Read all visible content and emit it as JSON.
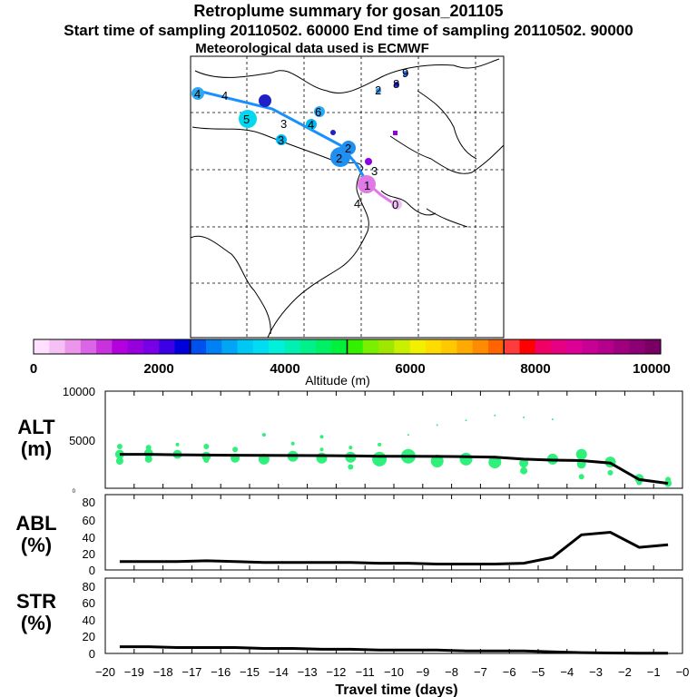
{
  "header": {
    "title": "Retroplume summary for gosan_201105",
    "sampling": "Start time of sampling 20110502. 60000     End time of sampling 20110502. 90000",
    "met": "Meteorological data used is ECMWF"
  },
  "colorbar": {
    "label": "Altitude (m)",
    "ticks": [
      "0",
      "2000",
      "4000",
      "6000",
      "8000",
      "10000"
    ],
    "colors": [
      "#ffe0ff",
      "#f5c0f5",
      "#eb96eb",
      "#dc64e6",
      "#c832dc",
      "#b400dc",
      "#9600dc",
      "#7800e6",
      "#3c00e6",
      "#0000dc",
      "#0050f0",
      "#0080f5",
      "#00a5f5",
      "#00c8f5",
      "#00dcf0",
      "#00f0dc",
      "#00f0b4",
      "#00f08c",
      "#00f064",
      "#00f03c",
      "#32f000",
      "#78f000",
      "#a0e600",
      "#c8f000",
      "#f0f000",
      "#ffdc00",
      "#ffc800",
      "#ffaa00",
      "#ff8c00",
      "#ff6400",
      "#ff3c3c",
      "#ff0000",
      "#f00064",
      "#e60082",
      "#dc0096",
      "#c80096",
      "#b4008c",
      "#a0007d",
      "#8c0073",
      "#780064"
    ]
  },
  "map": {
    "track_labels": [
      "4",
      "4",
      "5",
      "3",
      "4",
      "6",
      "3",
      "1",
      "2",
      "4",
      "0",
      "2",
      "3",
      "9",
      "8",
      "2"
    ]
  },
  "chart_data": [
    {
      "type": "line",
      "panel": "ALT",
      "ylabel": "ALT (m)",
      "ylabel_lines": [
        "ALT",
        "(m)"
      ],
      "ylim": [
        0,
        10000
      ],
      "yticks": [
        "10000",
        "5000",
        "0"
      ],
      "x": [
        -19.5,
        -18.5,
        -17.5,
        -16.5,
        -15.5,
        -14.5,
        -13.5,
        -12.5,
        -11.5,
        -10.5,
        -9.5,
        -8.5,
        -7.5,
        -6.5,
        -5.5,
        -4.5,
        -3.5,
        -2.5,
        -1.5,
        -0.5
      ],
      "values": [
        3500,
        3500,
        3450,
        3420,
        3400,
        3380,
        3370,
        3360,
        3340,
        3300,
        3300,
        3280,
        3250,
        3200,
        3000,
        2900,
        2850,
        2600,
        900,
        500
      ],
      "scatter": [
        {
          "x": -19.5,
          "y": 3500,
          "r": 5
        },
        {
          "x": -19.5,
          "y": 2800,
          "r": 4
        },
        {
          "x": -19.5,
          "y": 4300,
          "r": 3
        },
        {
          "x": -18.5,
          "y": 3600,
          "r": 5
        },
        {
          "x": -18.5,
          "y": 3000,
          "r": 4
        },
        {
          "x": -18.5,
          "y": 4200,
          "r": 3
        },
        {
          "x": -17.5,
          "y": 3500,
          "r": 5
        },
        {
          "x": -17.5,
          "y": 4500,
          "r": 2
        },
        {
          "x": -16.5,
          "y": 3300,
          "r": 5
        },
        {
          "x": -16.5,
          "y": 4300,
          "r": 3
        },
        {
          "x": -16.5,
          "y": 2900,
          "r": 3
        },
        {
          "x": -15.5,
          "y": 3100,
          "r": 5
        },
        {
          "x": -15.5,
          "y": 4000,
          "r": 3
        },
        {
          "x": -14.5,
          "y": 3000,
          "r": 6
        },
        {
          "x": -14.5,
          "y": 5500,
          "r": 2
        },
        {
          "x": -13.5,
          "y": 3300,
          "r": 6
        },
        {
          "x": -13.5,
          "y": 4600,
          "r": 2
        },
        {
          "x": -12.5,
          "y": 3100,
          "r": 6
        },
        {
          "x": -12.5,
          "y": 5300,
          "r": 2
        },
        {
          "x": -12.5,
          "y": 4000,
          "r": 2
        },
        {
          "x": -11.5,
          "y": 3200,
          "r": 6
        },
        {
          "x": -11.5,
          "y": 2200,
          "r": 3
        },
        {
          "x": -11.5,
          "y": 4200,
          "r": 2
        },
        {
          "x": -10.5,
          "y": 3000,
          "r": 8
        },
        {
          "x": -10.5,
          "y": 4500,
          "r": 2
        },
        {
          "x": -9.5,
          "y": 3300,
          "r": 8
        },
        {
          "x": -9.5,
          "y": 5500,
          "r": 1
        },
        {
          "x": -8.5,
          "y": 2800,
          "r": 7
        },
        {
          "x": -8.5,
          "y": 6500,
          "r": 1
        },
        {
          "x": -7.5,
          "y": 3000,
          "r": 7
        },
        {
          "x": -7.5,
          "y": 7000,
          "r": 1
        },
        {
          "x": -6.5,
          "y": 2700,
          "r": 7
        },
        {
          "x": -6.5,
          "y": 7500,
          "r": 1
        },
        {
          "x": -5.5,
          "y": 2600,
          "r": 5
        },
        {
          "x": -5.5,
          "y": 1800,
          "r": 4
        },
        {
          "x": -5.5,
          "y": 7300,
          "r": 1
        },
        {
          "x": -4.5,
          "y": 3000,
          "r": 6
        },
        {
          "x": -4.5,
          "y": 7100,
          "r": 1
        },
        {
          "x": -3.5,
          "y": 3500,
          "r": 6
        },
        {
          "x": -3.5,
          "y": 2500,
          "r": 5
        },
        {
          "x": -3.5,
          "y": 1200,
          "r": 3
        },
        {
          "x": -2.5,
          "y": 2700,
          "r": 6
        },
        {
          "x": -2.5,
          "y": 1600,
          "r": 3
        },
        {
          "x": -1.5,
          "y": 1000,
          "r": 5
        },
        {
          "x": -1.5,
          "y": 600,
          "r": 3
        },
        {
          "x": -0.5,
          "y": 500,
          "r": 4
        },
        {
          "x": -0.5,
          "y": 900,
          "r": 3
        }
      ]
    },
    {
      "type": "line",
      "panel": "ABL",
      "ylabel": "ABL (%)",
      "ylabel_lines": [
        "ABL",
        "(%)"
      ],
      "ylim": [
        0,
        90
      ],
      "yticks": [
        "80",
        "60",
        "40",
        "20",
        "0"
      ],
      "x": [
        -19.5,
        -18.5,
        -17.5,
        -16.5,
        -15.5,
        -14.5,
        -13.5,
        -12.5,
        -11.5,
        -10.5,
        -9.5,
        -8.5,
        -7.5,
        -6.5,
        -5.5,
        -4.5,
        -3.5,
        -2.5,
        -1.5,
        -0.5
      ],
      "values": [
        10,
        10,
        10,
        11,
        10,
        9,
        9,
        9,
        9,
        8,
        8,
        7,
        7,
        7,
        8,
        15,
        42,
        45,
        27,
        30
      ]
    },
    {
      "type": "line",
      "panel": "STR",
      "ylabel": "STR (%)",
      "ylabel_lines": [
        "STR",
        "(%)"
      ],
      "ylim": [
        0,
        90
      ],
      "yticks": [
        "80",
        "60",
        "40",
        "20",
        "0"
      ],
      "x": [
        -19.5,
        -18.5,
        -17.5,
        -16.5,
        -15.5,
        -14.5,
        -13.5,
        -12.5,
        -11.5,
        -10.5,
        -9.5,
        -8.5,
        -7.5,
        -6.5,
        -5.5,
        -4.5,
        -3.5,
        -2.5,
        -1.5,
        -0.5
      ],
      "values": [
        8,
        8,
        7,
        7,
        7,
        6,
        6,
        5,
        5,
        4,
        4,
        4,
        3,
        3,
        3,
        2,
        1,
        0.5,
        0.3,
        0.2
      ]
    }
  ],
  "xaxis": {
    "label": "Travel time (days)",
    "range": [
      -20,
      0
    ],
    "ticks": [
      "−20",
      "−19",
      "−18",
      "−17",
      "−16",
      "−15",
      "−14",
      "−13",
      "−12",
      "−11",
      "−10",
      "−9",
      "−8",
      "−7",
      "−6",
      "−5",
      "−4",
      "−3",
      "−2",
      "−1",
      "−0"
    ]
  }
}
